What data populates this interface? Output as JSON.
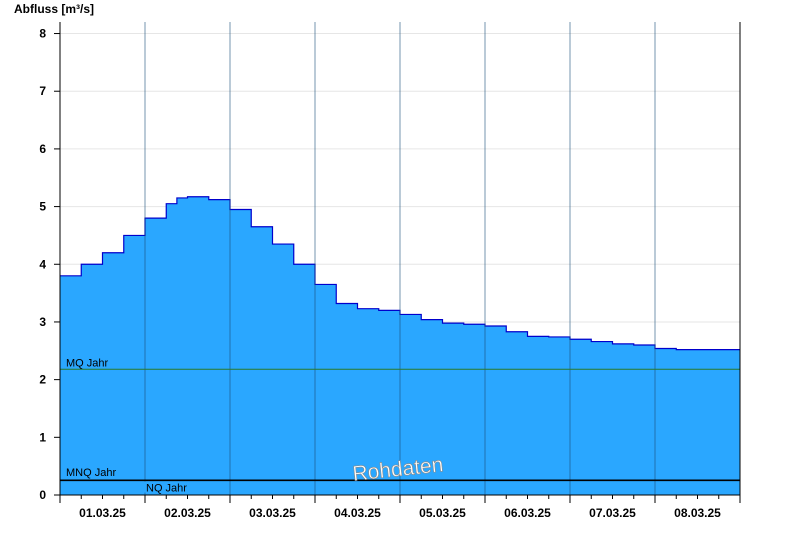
{
  "chart_data": {
    "type": "area",
    "title": "",
    "ylabel": "Abfluss [m³/s]",
    "xlabel": "",
    "ylim": [
      0,
      8.2
    ],
    "yticks": [
      0,
      1,
      2,
      3,
      4,
      5,
      6,
      7,
      8
    ],
    "grid": "horizontal",
    "fill_color": "#2aa7ff",
    "line_color": "#0000cc",
    "x_tick_labels": [
      "01.03.25",
      "02.03.25",
      "03.03.25",
      "04.03.25",
      "05.03.25",
      "06.03.25",
      "07.03.25",
      "08.03.25"
    ],
    "x_start": "2025-03-01 00:00",
    "x_end": "2025-03-09 00:00",
    "series": [
      {
        "x": [
          "2025-03-01 00:00",
          "2025-03-01 06:00",
          "2025-03-01 12:00",
          "2025-03-01 18:00",
          "2025-03-02 00:00",
          "2025-03-02 06:00",
          "2025-03-02 09:00",
          "2025-03-02 12:00",
          "2025-03-02 18:00",
          "2025-03-03 00:00",
          "2025-03-03 06:00",
          "2025-03-03 12:00",
          "2025-03-03 18:00",
          "2025-03-04 00:00",
          "2025-03-04 06:00",
          "2025-03-04 12:00",
          "2025-03-04 18:00",
          "2025-03-05 00:00",
          "2025-03-05 06:00",
          "2025-03-05 12:00",
          "2025-03-05 18:00",
          "2025-03-06 00:00",
          "2025-03-06 06:00",
          "2025-03-06 12:00",
          "2025-03-06 18:00",
          "2025-03-07 00:00",
          "2025-03-07 06:00",
          "2025-03-07 12:00",
          "2025-03-07 18:00",
          "2025-03-08 00:00",
          "2025-03-08 06:00",
          "2025-03-08 12:00",
          "2025-03-08 18:00",
          "2025-03-09 00:00"
        ],
        "values": [
          3.8,
          4.0,
          4.2,
          4.5,
          4.8,
          5.05,
          5.15,
          5.17,
          5.12,
          4.95,
          4.65,
          4.35,
          4.0,
          3.65,
          3.32,
          3.23,
          3.2,
          3.13,
          3.04,
          2.98,
          2.96,
          2.93,
          2.83,
          2.75,
          2.74,
          2.7,
          2.66,
          2.62,
          2.6,
          2.54,
          2.52,
          2.52,
          2.52,
          2.52
        ]
      }
    ],
    "reference_lines": [
      {
        "label": "MQ Jahr",
        "value": 2.18,
        "color": "#2a7a2a"
      },
      {
        "label": "MNQ Jahr",
        "value": 0.26,
        "color": "#000000"
      },
      {
        "label": "NQ Jahr",
        "value": 0.25,
        "color": "#000000"
      }
    ],
    "watermark": "Rohdaten"
  }
}
